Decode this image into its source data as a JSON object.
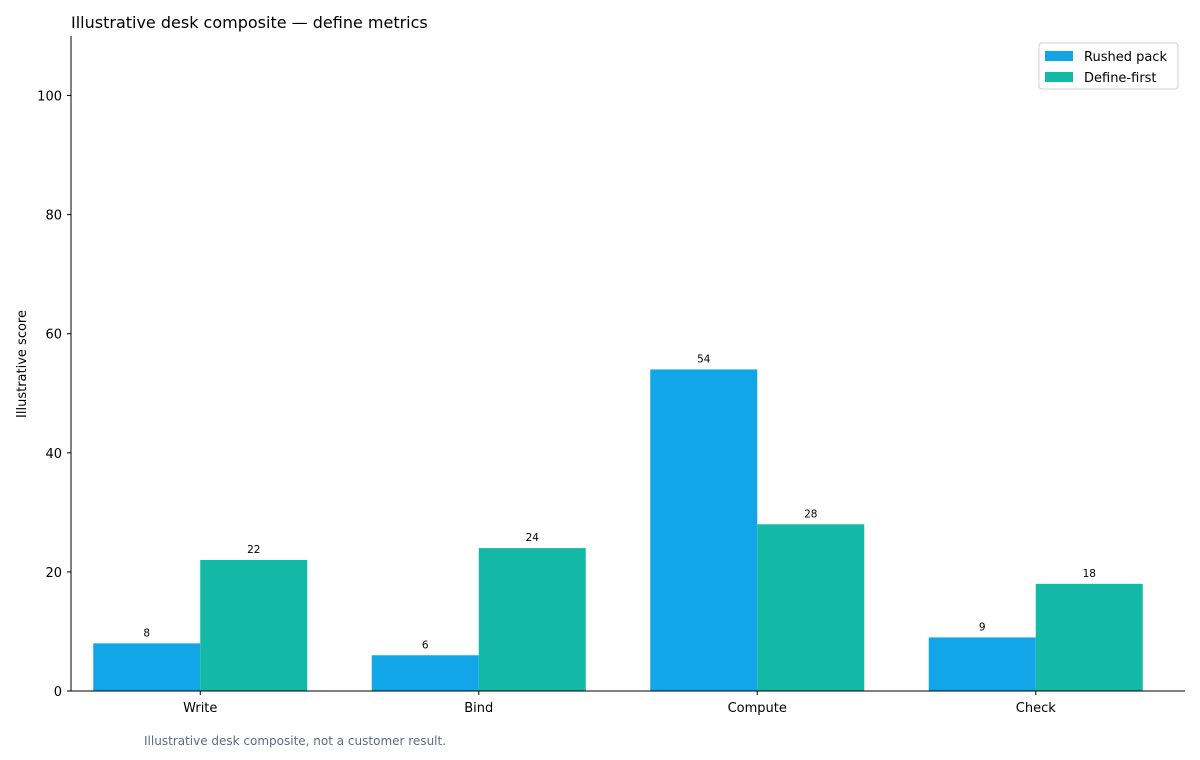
{
  "chart_data": {
    "type": "bar",
    "title": "Illustrative desk composite — define metrics",
    "xlabel": "",
    "ylabel": "Illustrative score",
    "categories": [
      "Write",
      "Bind",
      "Compute",
      "Check"
    ],
    "series": [
      {
        "name": "Rushed pack",
        "values": [
          8,
          6,
          54,
          9
        ],
        "color": "#12a5e8"
      },
      {
        "name": "Define-first",
        "values": [
          22,
          24,
          28,
          18
        ],
        "color": "#14b8a6"
      }
    ],
    "ylim": [
      0,
      110
    ],
    "yticks": [
      0,
      20,
      40,
      60,
      80,
      100
    ],
    "grid": false,
    "legend_position": "top-right",
    "footnote": "Illustrative desk composite, not a customer result."
  }
}
